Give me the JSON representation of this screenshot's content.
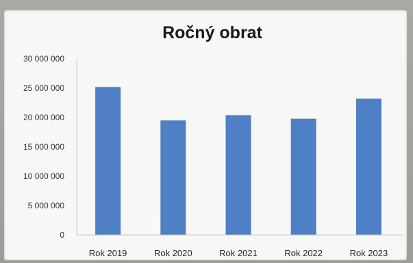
{
  "chart_data": {
    "type": "bar",
    "title": "Ročný obrat",
    "categories": [
      "Rok 2019",
      "Rok 2020",
      "Rok 2021",
      "Rok 2022",
      "Rok 2023"
    ],
    "values": [
      25200000,
      19500000,
      20400000,
      19800000,
      23200000
    ],
    "ylim": [
      0,
      30000000
    ],
    "yticks": [
      0,
      5000000,
      10000000,
      15000000,
      20000000,
      25000000,
      30000000
    ],
    "ytick_labels": [
      "0",
      "5 000 000",
      "10 000 000",
      "15 000 000",
      "20 000 000",
      "25 000 000",
      "30 000 000"
    ],
    "xlabel": "",
    "ylabel": "",
    "grid": false,
    "bar_color": "#4f7fc4"
  }
}
